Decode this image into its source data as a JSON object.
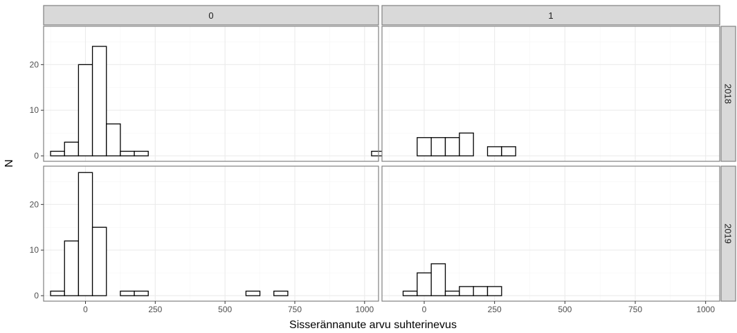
{
  "chart_data": {
    "type": "bar",
    "xlabel": "Sisserännanute arvu suhterinevus",
    "ylabel": "N",
    "xlim": [
      -150,
      1050
    ],
    "ylim": [
      -1.2,
      28.4
    ],
    "x_ticks": [
      0,
      250,
      500,
      750,
      1000
    ],
    "x_tick_labels": [
      "0",
      "250",
      "500",
      "750",
      "1000"
    ],
    "y_ticks": [
      0,
      10,
      20
    ],
    "y_tick_labels": [
      "0",
      "10",
      "20"
    ],
    "bin_width": 50,
    "bin_start": -125,
    "col_facets": [
      "0",
      "1"
    ],
    "row_facets": [
      "2018",
      "2019"
    ],
    "grid": true,
    "panels": [
      {
        "col": "0",
        "row": "2018",
        "counts": [
          1,
          3,
          20,
          24,
          7,
          1,
          1,
          0,
          0,
          0,
          0,
          0,
          0,
          0,
          0,
          0,
          0,
          0,
          0,
          0,
          0,
          0,
          0,
          1
        ]
      },
      {
        "col": "1",
        "row": "2018",
        "counts": [
          0,
          0,
          4,
          4,
          4,
          5,
          0,
          2,
          2,
          0,
          0,
          0,
          0,
          0,
          0,
          0,
          0,
          0,
          0,
          0,
          0,
          0,
          0,
          0
        ]
      },
      {
        "col": "0",
        "row": "2019",
        "counts": [
          1,
          12,
          27,
          15,
          0,
          1,
          1,
          0,
          0,
          0,
          0,
          0,
          0,
          0,
          1,
          0,
          1,
          0,
          0,
          0,
          0,
          0,
          0,
          0
        ]
      },
      {
        "col": "1",
        "row": "2019",
        "counts": [
          0,
          1,
          5,
          7,
          1,
          2,
          2,
          2,
          0,
          0,
          0,
          0,
          0,
          0,
          0,
          0,
          0,
          0,
          0,
          0,
          0,
          0,
          0,
          0
        ]
      }
    ]
  },
  "colors": {
    "panel_border": "#808080",
    "strip_fill": "#d9d9d9",
    "strip_border": "#808080",
    "grid_major": "#ebebeb",
    "grid_minor": "#f5f5f5",
    "bar_fill": "#ffffff",
    "bar_stroke": "#000000",
    "tick_text": "#4d4d4d",
    "axis_title": "#000000"
  }
}
